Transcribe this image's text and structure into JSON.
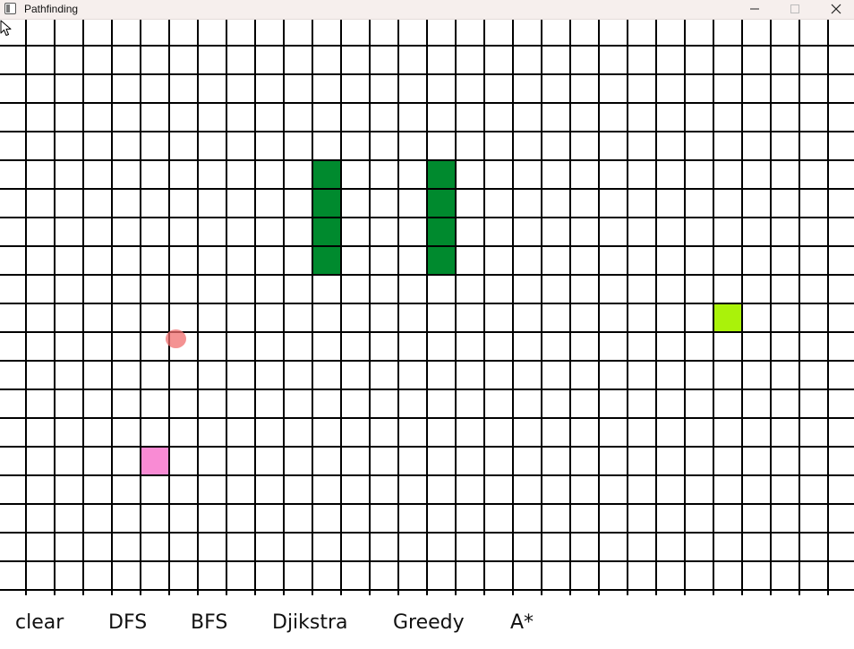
{
  "window": {
    "title": "Pathfinding",
    "controls": [
      "minimize",
      "maximize",
      "close"
    ]
  },
  "grid": {
    "columns": 30,
    "rows": 20,
    "cell_fill": "#ffffff",
    "line_color": "#000000",
    "wall_color": "#008a2e",
    "start_color": "#f98bd4",
    "end_color": "#aaf20a",
    "walls": [
      {
        "col": 11,
        "row": 5
      },
      {
        "col": 11,
        "row": 6
      },
      {
        "col": 11,
        "row": 7
      },
      {
        "col": 11,
        "row": 8
      },
      {
        "col": 15,
        "row": 5
      },
      {
        "col": 15,
        "row": 6
      },
      {
        "col": 15,
        "row": 7
      },
      {
        "col": 15,
        "row": 8
      }
    ],
    "start": {
      "col": 5,
      "row": 15
    },
    "end": {
      "col": 25,
      "row": 10
    }
  },
  "cursor": {
    "highlight_color": "#f06e6e",
    "icon": "arrow-cursor-icon"
  },
  "toolbar": {
    "clear": "clear",
    "dfs": "DFS",
    "bfs": "BFS",
    "dijkstra": "Djikstra",
    "greedy": "Greedy",
    "astar": "A*"
  }
}
